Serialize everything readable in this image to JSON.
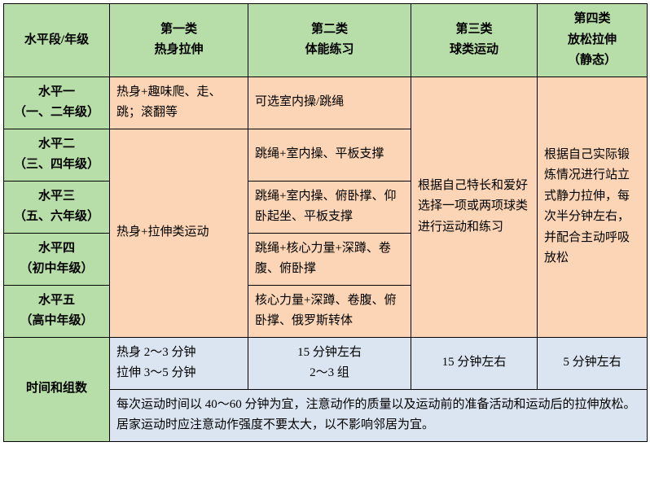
{
  "colors": {
    "header_bg": "#b7dea8",
    "peach_bg": "#fbd5b5",
    "blue_bg": "#dbe5f1",
    "border": "#000000"
  },
  "header": {
    "c0": "水平段/年级",
    "c1_line1": "第一类",
    "c1_line2": "热身拉伸",
    "c2_line1": "第二类",
    "c2_line2": "体能练习",
    "c3_line1": "第三类",
    "c3_line2": "球类运动",
    "c4_line1": "第四类",
    "c4_line2": "放松拉伸",
    "c4_line3": "（静态）"
  },
  "rows": {
    "r1_label_l1": "水平一",
    "r1_label_l2": "（一、二年级）",
    "r1_c1": "热身+趣味爬、走、跳；滚翻等",
    "r1_c2": "可选室内操/跳绳",
    "r2_label_l1": "水平二",
    "r2_label_l2": "（三、四年级）",
    "r2_c2": "跳绳+室内操、平板支撑",
    "r3_label_l1": "水平三",
    "r3_label_l2": "（五、六年级）",
    "r3_c2": "跳绳+室内操、俯卧撑、仰卧起坐、平板支撑",
    "r4_label_l1": "水平四",
    "r4_label_l2": "（初中年级）",
    "r4_c2": "跳绳+核心力量+深蹲、卷腹、俯卧撑",
    "r5_label_l1": "水平五",
    "r5_label_l2": "（高中年级）",
    "r5_c2": "核心力量+深蹲、卷腹、俯卧撑、俄罗斯转体",
    "merged_c1": "热身+拉伸类运动",
    "merged_c3": "根据自己特长和爱好选择一项或两项球类进行运动和练习",
    "merged_c4": "根据自己实际锻炼情况进行站立式静力拉伸，每次半分钟左右，并配合主动呼吸放松"
  },
  "time": {
    "label": "时间和组数",
    "c1_l1": "热身 2～3 分钟",
    "c1_l2": "拉伸 3～5 分钟",
    "c2_l1": "15 分钟左右",
    "c2_l2": "2～3 组",
    "c3": "15 分钟左右",
    "c4": "5 分钟左右",
    "note": "每次运动时间以 40～60 分钟为宜，注意动作的质量以及运动前的准备活动和运动后的拉伸放松。居家运动时应注意动作强度不要太大，以不影响邻居为宜。"
  }
}
